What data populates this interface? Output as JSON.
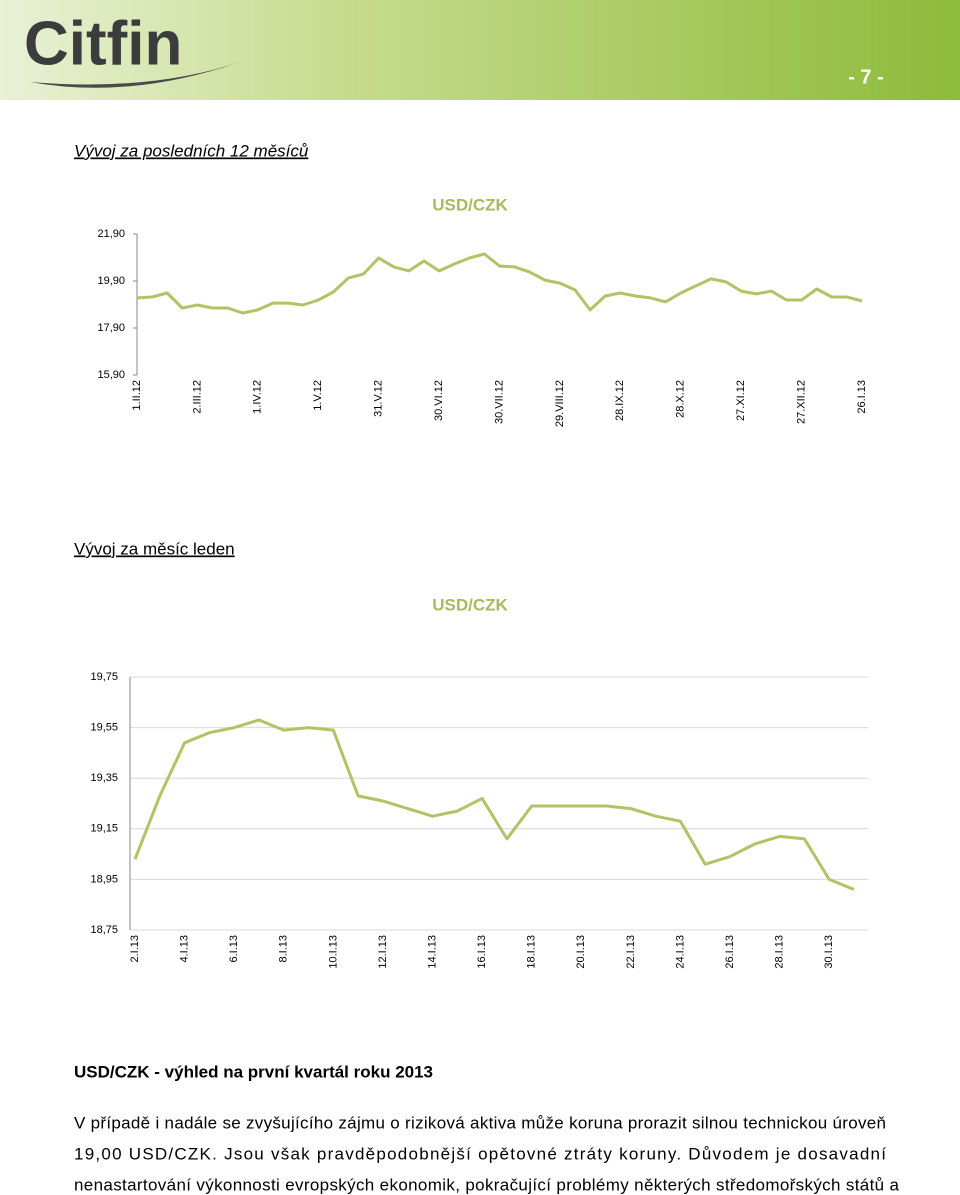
{
  "header": {
    "logo": "Citfin",
    "page": "- 7 -"
  },
  "headings": [
    "Vývoj za posledních 12 měsíců",
    "Vývoj za měsíc leden"
  ],
  "section": {
    "title": "USD/CZK - výhled na první kvartál roku 2013",
    "lines": [
      "V případě i nadále se zvyšujícího zájmu o riziková aktiva může koruna prorazit silnou technickou úroveň",
      "19,00 USD/CZK. Jsou však pravděpodobnější opětovné ztráty koruny. Důvodem je dosavadní",
      "nenastartování výkonnosti evropských ekonomik, pokračující problémy některých středomořských států a"
    ]
  },
  "chart_data": [
    {
      "type": "line",
      "title": "USD/CZK",
      "color": "#b3c264",
      "grid": false,
      "ylim": [
        15.9,
        21.9
      ],
      "yticks": [
        {
          "value": 15.9,
          "label": "15,90"
        },
        {
          "value": 17.9,
          "label": "17,90"
        },
        {
          "value": 19.9,
          "label": "19,90"
        },
        {
          "value": 21.9,
          "label": "21,90"
        }
      ],
      "categories": [
        "1.II.12",
        null,
        null,
        null,
        "2.III.12",
        null,
        null,
        null,
        "1.IV.12",
        null,
        null,
        null,
        "1.V.12",
        null,
        null,
        null,
        "31.V.12",
        null,
        null,
        null,
        "30.VI.12",
        null,
        null,
        null,
        "30.VII.12",
        null,
        null,
        null,
        "29.VIII.12",
        null,
        null,
        null,
        "28.IX.12",
        null,
        null,
        null,
        "28.X.12",
        null,
        null,
        null,
        "27.XI.12",
        null,
        null,
        null,
        "27.XII.12",
        null,
        null,
        null,
        "26.I.13"
      ],
      "values": [
        19.18,
        19.22,
        19.39,
        18.75,
        18.88,
        18.75,
        18.75,
        18.54,
        18.67,
        18.96,
        18.96,
        18.88,
        19.09,
        19.43,
        20.03,
        20.2,
        20.88,
        20.5,
        20.33,
        20.75,
        20.33,
        20.62,
        20.88,
        21.05,
        20.54,
        20.5,
        20.28,
        19.94,
        19.81,
        19.52,
        18.67,
        19.26,
        19.39,
        19.26,
        19.18,
        19.01,
        19.39,
        19.69,
        19.99,
        19.86,
        19.47,
        19.35,
        19.47,
        19.09,
        19.09,
        19.56,
        19.22,
        19.22,
        19.05
      ]
    },
    {
      "type": "line",
      "title": "USD/CZK",
      "color": "#b3c264",
      "grid": true,
      "ylim": [
        18.75,
        19.75
      ],
      "yticks": [
        {
          "value": 18.75,
          "label": "18,75"
        },
        {
          "value": 18.95,
          "label": "18,95"
        },
        {
          "value": 19.15,
          "label": "19,15"
        },
        {
          "value": 19.35,
          "label": "19,35"
        },
        {
          "value": 19.55,
          "label": "19,55"
        },
        {
          "value": 19.75,
          "label": "19,75"
        }
      ],
      "categories": [
        "2.I.13",
        null,
        "4.I.13",
        null,
        "6.I.13",
        null,
        "8.I.13",
        null,
        "10.I.13",
        null,
        "12.I.13",
        null,
        "14.I.13",
        null,
        "16.I.13",
        null,
        "18.I.13",
        null,
        "20.I.13",
        null,
        "22.I.13",
        null,
        "24.I.13",
        null,
        "26.I.13",
        null,
        "28.I.13",
        null,
        "30.I.13",
        null
      ],
      "values": [
        19.03,
        19.28,
        19.49,
        19.53,
        19.55,
        19.58,
        19.54,
        19.55,
        19.54,
        19.28,
        19.26,
        19.23,
        19.2,
        19.22,
        19.27,
        19.11,
        19.24,
        19.24,
        19.24,
        19.24,
        19.23,
        19.2,
        19.18,
        19.01,
        19.04,
        19.09,
        19.12,
        19.11,
        18.95,
        18.91
      ]
    }
  ]
}
